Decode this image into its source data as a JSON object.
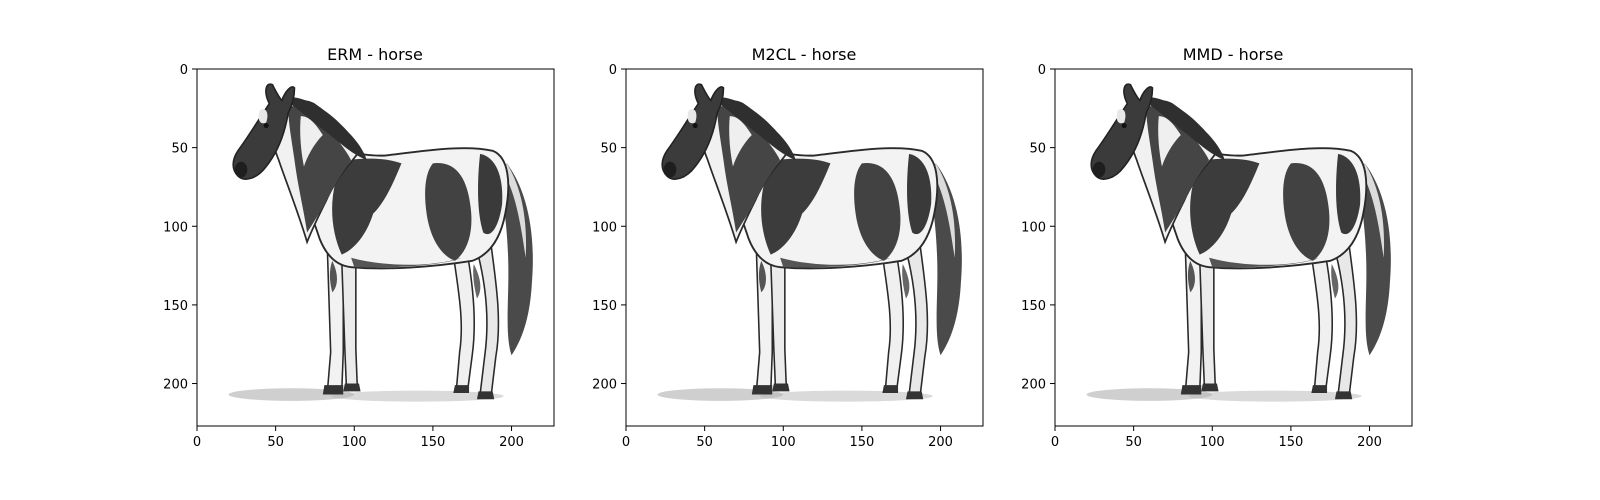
{
  "chart_data": [
    {
      "type": "image",
      "title": "ERM - horse",
      "xlim": [
        0,
        227
      ],
      "ylim": [
        227,
        0
      ],
      "xticks": [
        0,
        50,
        100,
        150,
        200
      ],
      "yticks": [
        0,
        50,
        100,
        150,
        200
      ],
      "image": "grayscale pencil sketch of a pinto horse standing in profile, facing left"
    },
    {
      "type": "image",
      "title": "M2CL - horse",
      "xlim": [
        0,
        227
      ],
      "ylim": [
        227,
        0
      ],
      "xticks": [
        0,
        50,
        100,
        150,
        200
      ],
      "yticks": [
        0,
        50,
        100,
        150,
        200
      ],
      "image": "grayscale pencil sketch of a pinto horse standing in profile, facing left"
    },
    {
      "type": "image",
      "title": "MMD - horse",
      "xlim": [
        0,
        227
      ],
      "ylim": [
        227,
        0
      ],
      "xticks": [
        0,
        50,
        100,
        150,
        200
      ],
      "yticks": [
        0,
        50,
        100,
        150,
        200
      ],
      "image": "grayscale pencil sketch of a pinto horse standing in profile, facing left"
    }
  ],
  "colors": {
    "axes": "#000000",
    "background": "#ffffff",
    "horse_dark": "#3a3a3a",
    "horse_light": "#f4f4f4",
    "outline": "#2a2a2a"
  }
}
